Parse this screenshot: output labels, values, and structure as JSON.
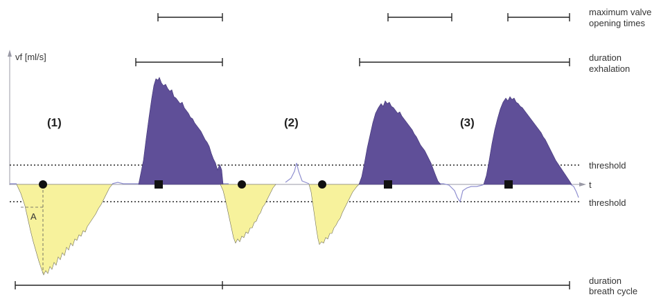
{
  "labels": {
    "y_axis": "vf [ml/s]",
    "x_axis": "t",
    "max_valve_line1": "maximum valve",
    "max_valve_line2": "opening times",
    "exhalation_line1": "duration",
    "exhalation_line2": "exhalation",
    "threshold_upper": "threshold",
    "threshold_lower": "threshold",
    "breath_line1": "duration",
    "breath_line2": "breath cycle",
    "marker_a": "A"
  },
  "phases": [
    "(1)",
    "(2)",
    "(3)"
  ],
  "colors": {
    "exhalation_fill": "#5f4f98",
    "inhalation_fill": "#f7f29c",
    "baseline_signal": "#8f8fd0"
  },
  "markers": {
    "inhalation": "filled-circle",
    "exhalation": "filled-square"
  }
}
